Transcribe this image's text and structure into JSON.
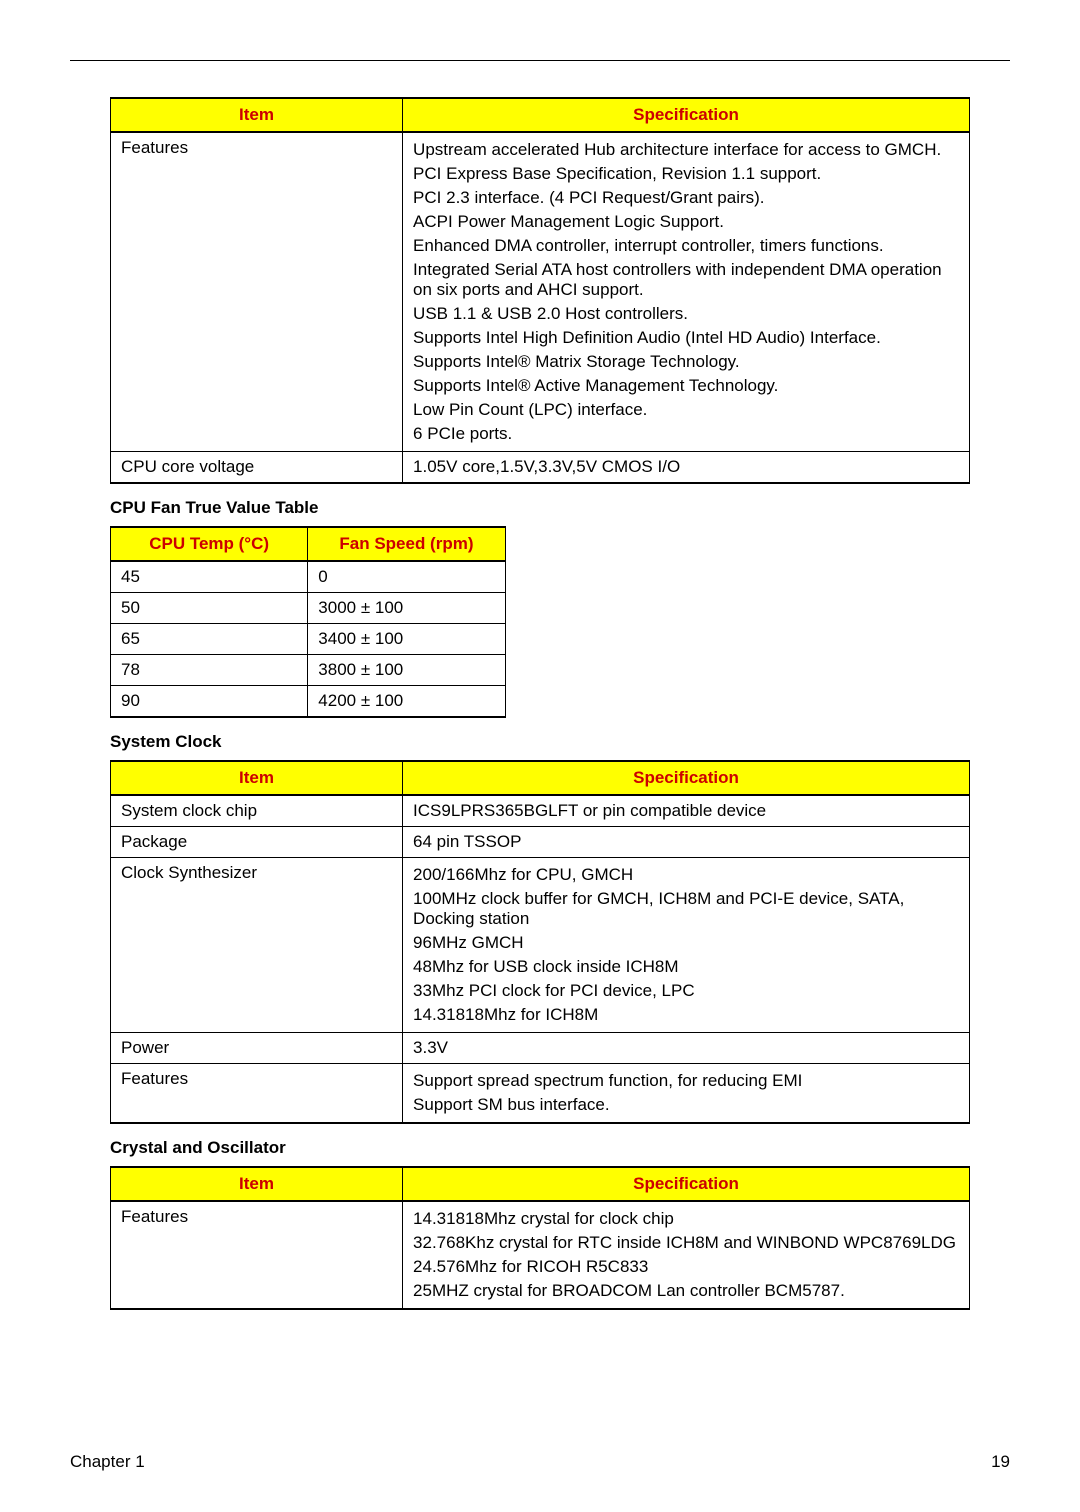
{
  "footer": {
    "chapter": "Chapter 1",
    "page": "19"
  },
  "table1": {
    "headers": [
      "Item",
      "Specification"
    ],
    "col_widths": [
      "34%",
      "66%"
    ],
    "header_bg": "#ffff00",
    "header_color": "#cc0000",
    "rows": [
      {
        "item": "Features",
        "spec": [
          "Upstream accelerated Hub architecture interface for access to GMCH.",
          "PCI Express Base Specification, Revision 1.1 support.",
          "PCI 2.3 interface. (4 PCI Request/Grant pairs).",
          "ACPI Power Management Logic Support.",
          "Enhanced DMA controller, interrupt controller, timers functions.",
          "Integrated Serial ATA host controllers with independent DMA operation on six ports and AHCI support.",
          "USB 1.1 & USB 2.0 Host controllers.",
          "Supports Intel High Definition Audio (Intel HD Audio) Interface.",
          "Supports Intel® Matrix Storage Technology.",
          "Supports Intel® Active Management Technology.",
          "Low Pin Count (LPC) interface.",
          "6 PCIe ports."
        ]
      },
      {
        "item": "CPU core voltage",
        "spec": [
          "1.05V core,1.5V,3.3V,5V CMOS I/O"
        ]
      }
    ]
  },
  "fanTable": {
    "title": "CPU Fan True Value Table",
    "headers": [
      "CPU Temp (°C)",
      "Fan Speed (rpm)"
    ],
    "header_bg": "#ffff00",
    "header_color": "#cc0000",
    "rows": [
      [
        "45",
        "0"
      ],
      [
        "50",
        "3000 ± 100"
      ],
      [
        "65",
        "3400 ± 100"
      ],
      [
        "78",
        "3800 ± 100"
      ],
      [
        "90",
        "4200 ± 100"
      ]
    ]
  },
  "clockTable": {
    "title": "System Clock",
    "headers": [
      "Item",
      "Specification"
    ],
    "header_bg": "#ffff00",
    "header_color": "#cc0000",
    "rows": [
      {
        "item": "System clock chip",
        "spec": [
          "ICS9LPRS365BGLFT or pin compatible device"
        ]
      },
      {
        "item": "Package",
        "spec": [
          "64 pin TSSOP"
        ]
      },
      {
        "item": "Clock Synthesizer",
        "spec": [
          "200/166Mhz for CPU, GMCH",
          "100MHz clock buffer for GMCH, ICH8M and PCI-E device, SATA, Docking station",
          "96MHz GMCH",
          "48Mhz for USB clock inside ICH8M",
          "33Mhz PCI clock for PCI device, LPC",
          "14.31818Mhz for ICH8M"
        ]
      },
      {
        "item": "Power",
        "spec": [
          "3.3V"
        ]
      },
      {
        "item": "Features",
        "spec": [
          "Support spread spectrum function, for reducing EMI",
          "Support SM bus interface."
        ]
      }
    ]
  },
  "crystalTable": {
    "title": "Crystal and Oscillator",
    "headers": [
      "Item",
      "Specification"
    ],
    "header_bg": "#ffff00",
    "header_color": "#cc0000",
    "rows": [
      {
        "item": "Features",
        "spec": [
          "14.31818Mhz crystal for clock chip",
          "32.768Khz crystal for RTC inside ICH8M and WINBOND WPC8769LDG",
          "24.576Mhz for RICOH R5C833",
          "25MHZ crystal for BROADCOM Lan controller BCM5787."
        ]
      }
    ]
  }
}
